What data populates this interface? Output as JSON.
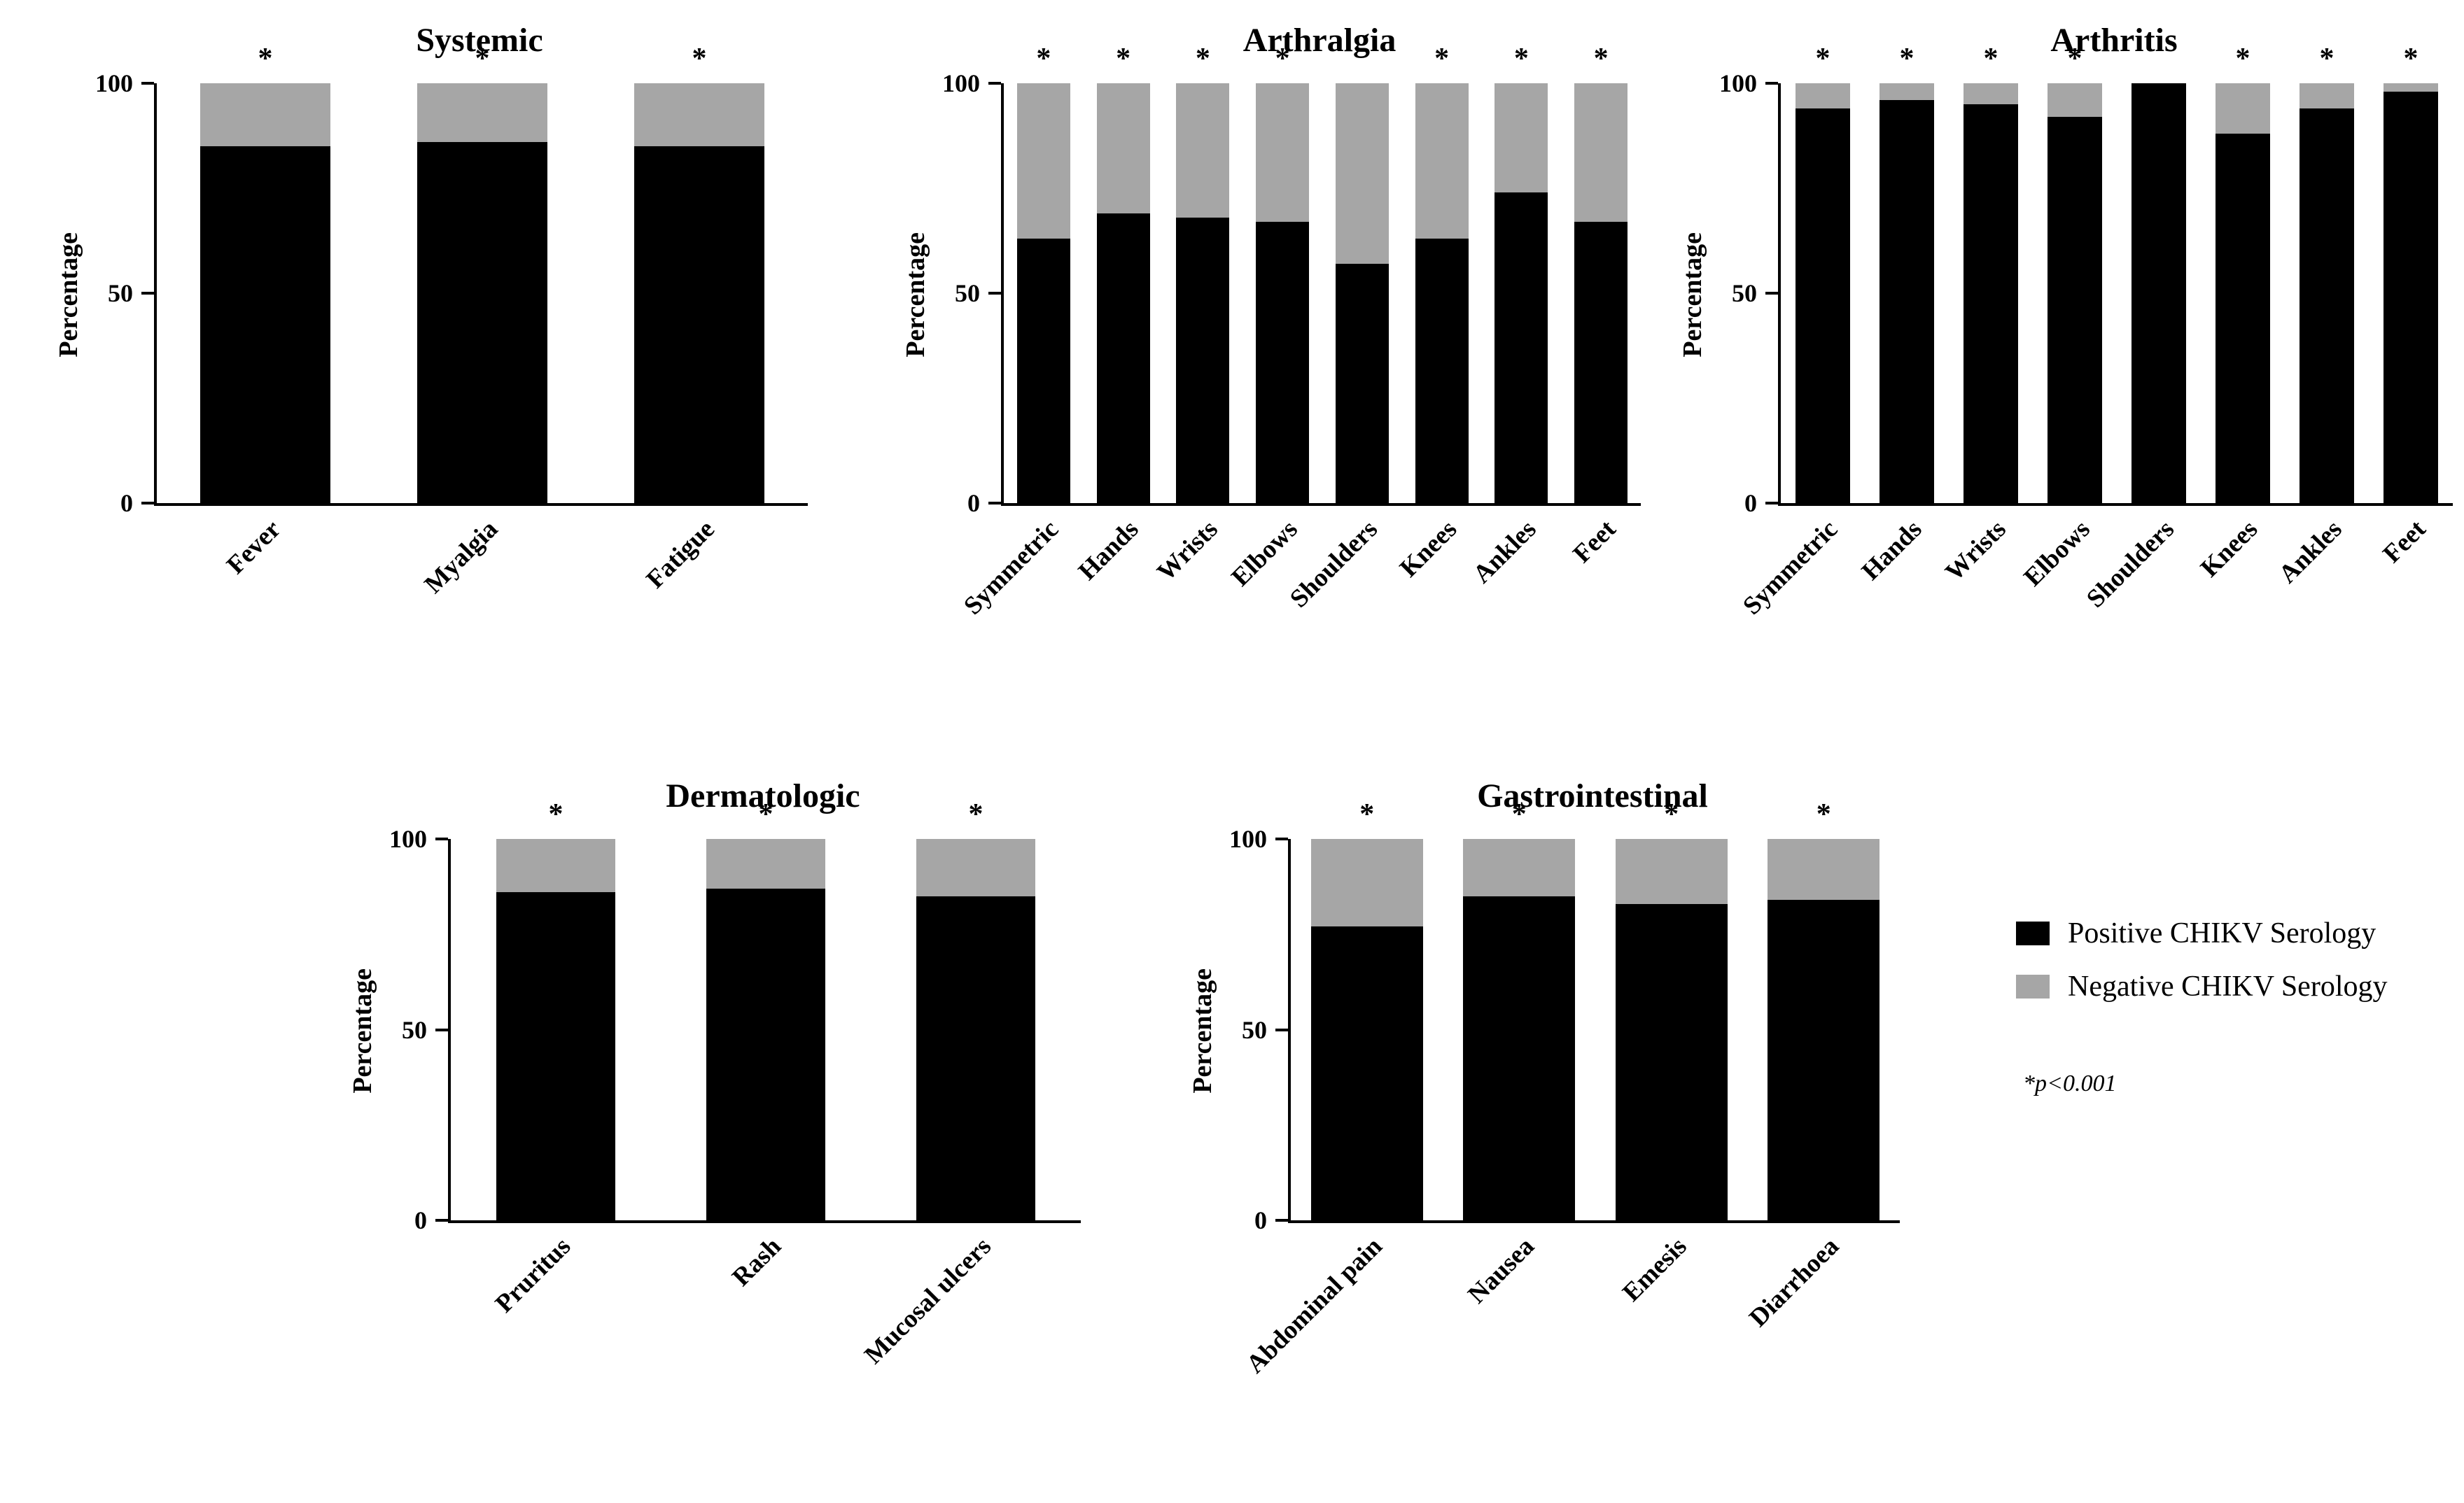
{
  "figure": {
    "background": "#ffffff",
    "positive_color": "#000000",
    "negative_color": "#a6a6a6"
  },
  "legend": {
    "items": [
      {
        "label": "Positive CHIKV Serology",
        "color": "#000000"
      },
      {
        "label": "Negative CHIKV Serology",
        "color": "#a6a6a6"
      }
    ],
    "note": "*p<0.001"
  },
  "chart_data": [
    {
      "type": "bar",
      "stacked": true,
      "title": "Systemic",
      "xlabel": "",
      "ylabel": "Percentage",
      "ylim": [
        0,
        100
      ],
      "yticks": [
        0,
        50,
        100
      ],
      "grid": false,
      "categories": [
        "Fever",
        "Myalgia",
        "Fatigue"
      ],
      "series": [
        {
          "name": "Positive CHIKV Serology",
          "color": "#000000",
          "values": [
            85,
            86,
            85
          ]
        },
        {
          "name": "Negative CHIKV Serology",
          "color": "#a6a6a6",
          "values": [
            15,
            14,
            15
          ]
        }
      ],
      "significance": [
        "*",
        "*",
        "*"
      ]
    },
    {
      "type": "bar",
      "stacked": true,
      "title": "Arthralgia",
      "xlabel": "",
      "ylabel": "Percentage",
      "ylim": [
        0,
        100
      ],
      "yticks": [
        0,
        50,
        100
      ],
      "grid": false,
      "categories": [
        "Symmetric",
        "Hands",
        "Wrists",
        "Elbows",
        "Shoulders",
        "Knees",
        "Ankles",
        "Feet"
      ],
      "series": [
        {
          "name": "Positive CHIKV Serology",
          "color": "#000000",
          "values": [
            63,
            69,
            68,
            67,
            57,
            63,
            74,
            67
          ]
        },
        {
          "name": "Negative CHIKV Serology",
          "color": "#a6a6a6",
          "values": [
            37,
            31,
            32,
            33,
            43,
            37,
            26,
            33
          ]
        }
      ],
      "significance": [
        "*",
        "*",
        "*",
        "*",
        "",
        "*",
        "*",
        "*"
      ]
    },
    {
      "type": "bar",
      "stacked": true,
      "title": "Arthritis",
      "xlabel": "",
      "ylabel": "Percentage",
      "ylim": [
        0,
        100
      ],
      "yticks": [
        0,
        50,
        100
      ],
      "grid": false,
      "categories": [
        "Symmetric",
        "Hands",
        "Wrists",
        "Elbows",
        "Shoulders",
        "Knees",
        "Ankles",
        "Feet"
      ],
      "series": [
        {
          "name": "Positive CHIKV Serology",
          "color": "#000000",
          "values": [
            94,
            96,
            95,
            92,
            100,
            88,
            94,
            98
          ]
        },
        {
          "name": "Negative CHIKV Serology",
          "color": "#a6a6a6",
          "values": [
            6,
            4,
            5,
            8,
            0,
            12,
            6,
            2
          ]
        }
      ],
      "significance": [
        "*",
        "*",
        "*",
        "*",
        "",
        "*",
        "*",
        "*"
      ]
    },
    {
      "type": "bar",
      "stacked": true,
      "title": "Dermatologic",
      "xlabel": "",
      "ylabel": "Percentage",
      "ylim": [
        0,
        100
      ],
      "yticks": [
        0,
        50,
        100
      ],
      "grid": false,
      "categories": [
        "Pruritus",
        "Rash",
        "Mucosal ulcers"
      ],
      "series": [
        {
          "name": "Positive CHIKV Serology",
          "color": "#000000",
          "values": [
            86,
            87,
            85
          ]
        },
        {
          "name": "Negative CHIKV Serology",
          "color": "#a6a6a6",
          "values": [
            14,
            13,
            15
          ]
        }
      ],
      "significance": [
        "*",
        "*",
        "*"
      ]
    },
    {
      "type": "bar",
      "stacked": true,
      "title": "Gastrointestinal",
      "xlabel": "",
      "ylabel": "Percentage",
      "ylim": [
        0,
        100
      ],
      "yticks": [
        0,
        50,
        100
      ],
      "grid": false,
      "categories": [
        "Abdominal pain",
        "Nausea",
        "Emesis",
        "Diarrhoea"
      ],
      "series": [
        {
          "name": "Positive CHIKV Serology",
          "color": "#000000",
          "values": [
            77,
            85,
            83,
            84
          ]
        },
        {
          "name": "Negative CHIKV Serology",
          "color": "#a6a6a6",
          "values": [
            23,
            15,
            17,
            16
          ]
        }
      ],
      "significance": [
        "*",
        "*",
        "*",
        "*"
      ]
    }
  ]
}
